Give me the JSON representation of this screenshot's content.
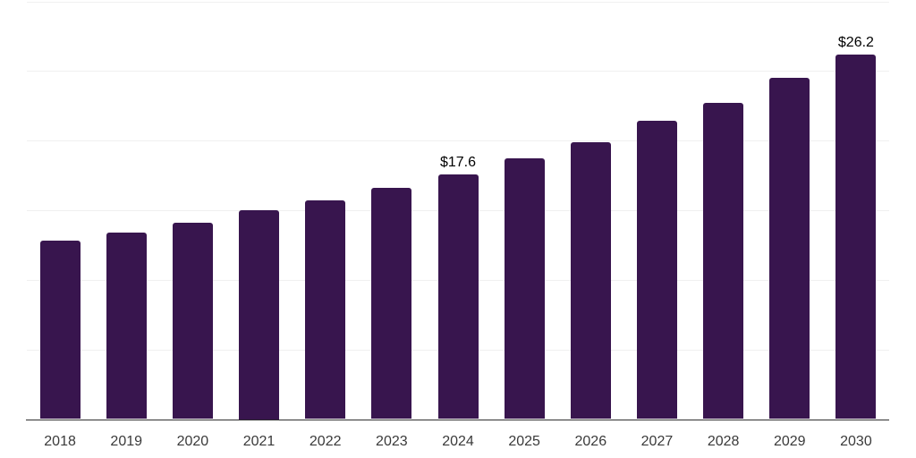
{
  "chart_data": {
    "type": "bar",
    "title": "",
    "xlabel": "",
    "ylabel": "",
    "categories": [
      "2018",
      "2019",
      "2020",
      "2021",
      "2022",
      "2023",
      "2024",
      "2025",
      "2026",
      "2027",
      "2028",
      "2029",
      "2030"
    ],
    "values": [
      12.8,
      13.4,
      14.1,
      15.0,
      15.7,
      16.6,
      17.6,
      18.7,
      19.9,
      21.4,
      22.7,
      24.5,
      26.2
    ],
    "value_labels": [
      "",
      "",
      "",
      "",
      "",
      "",
      "$17.6",
      "",
      "",
      "",
      "",
      "",
      "$26.2"
    ],
    "ylim": [
      0,
      30
    ],
    "grid": true,
    "gridline_step": 5,
    "y_axis_labels_visible": false,
    "legend_position": "none",
    "colors": {
      "bar": "#38154e",
      "gridline": "#f0f0f0",
      "axis_line": "#2e2e2e",
      "tick_label": "#3a3a3a",
      "value_label": "#000000",
      "background": "#ffffff"
    }
  }
}
